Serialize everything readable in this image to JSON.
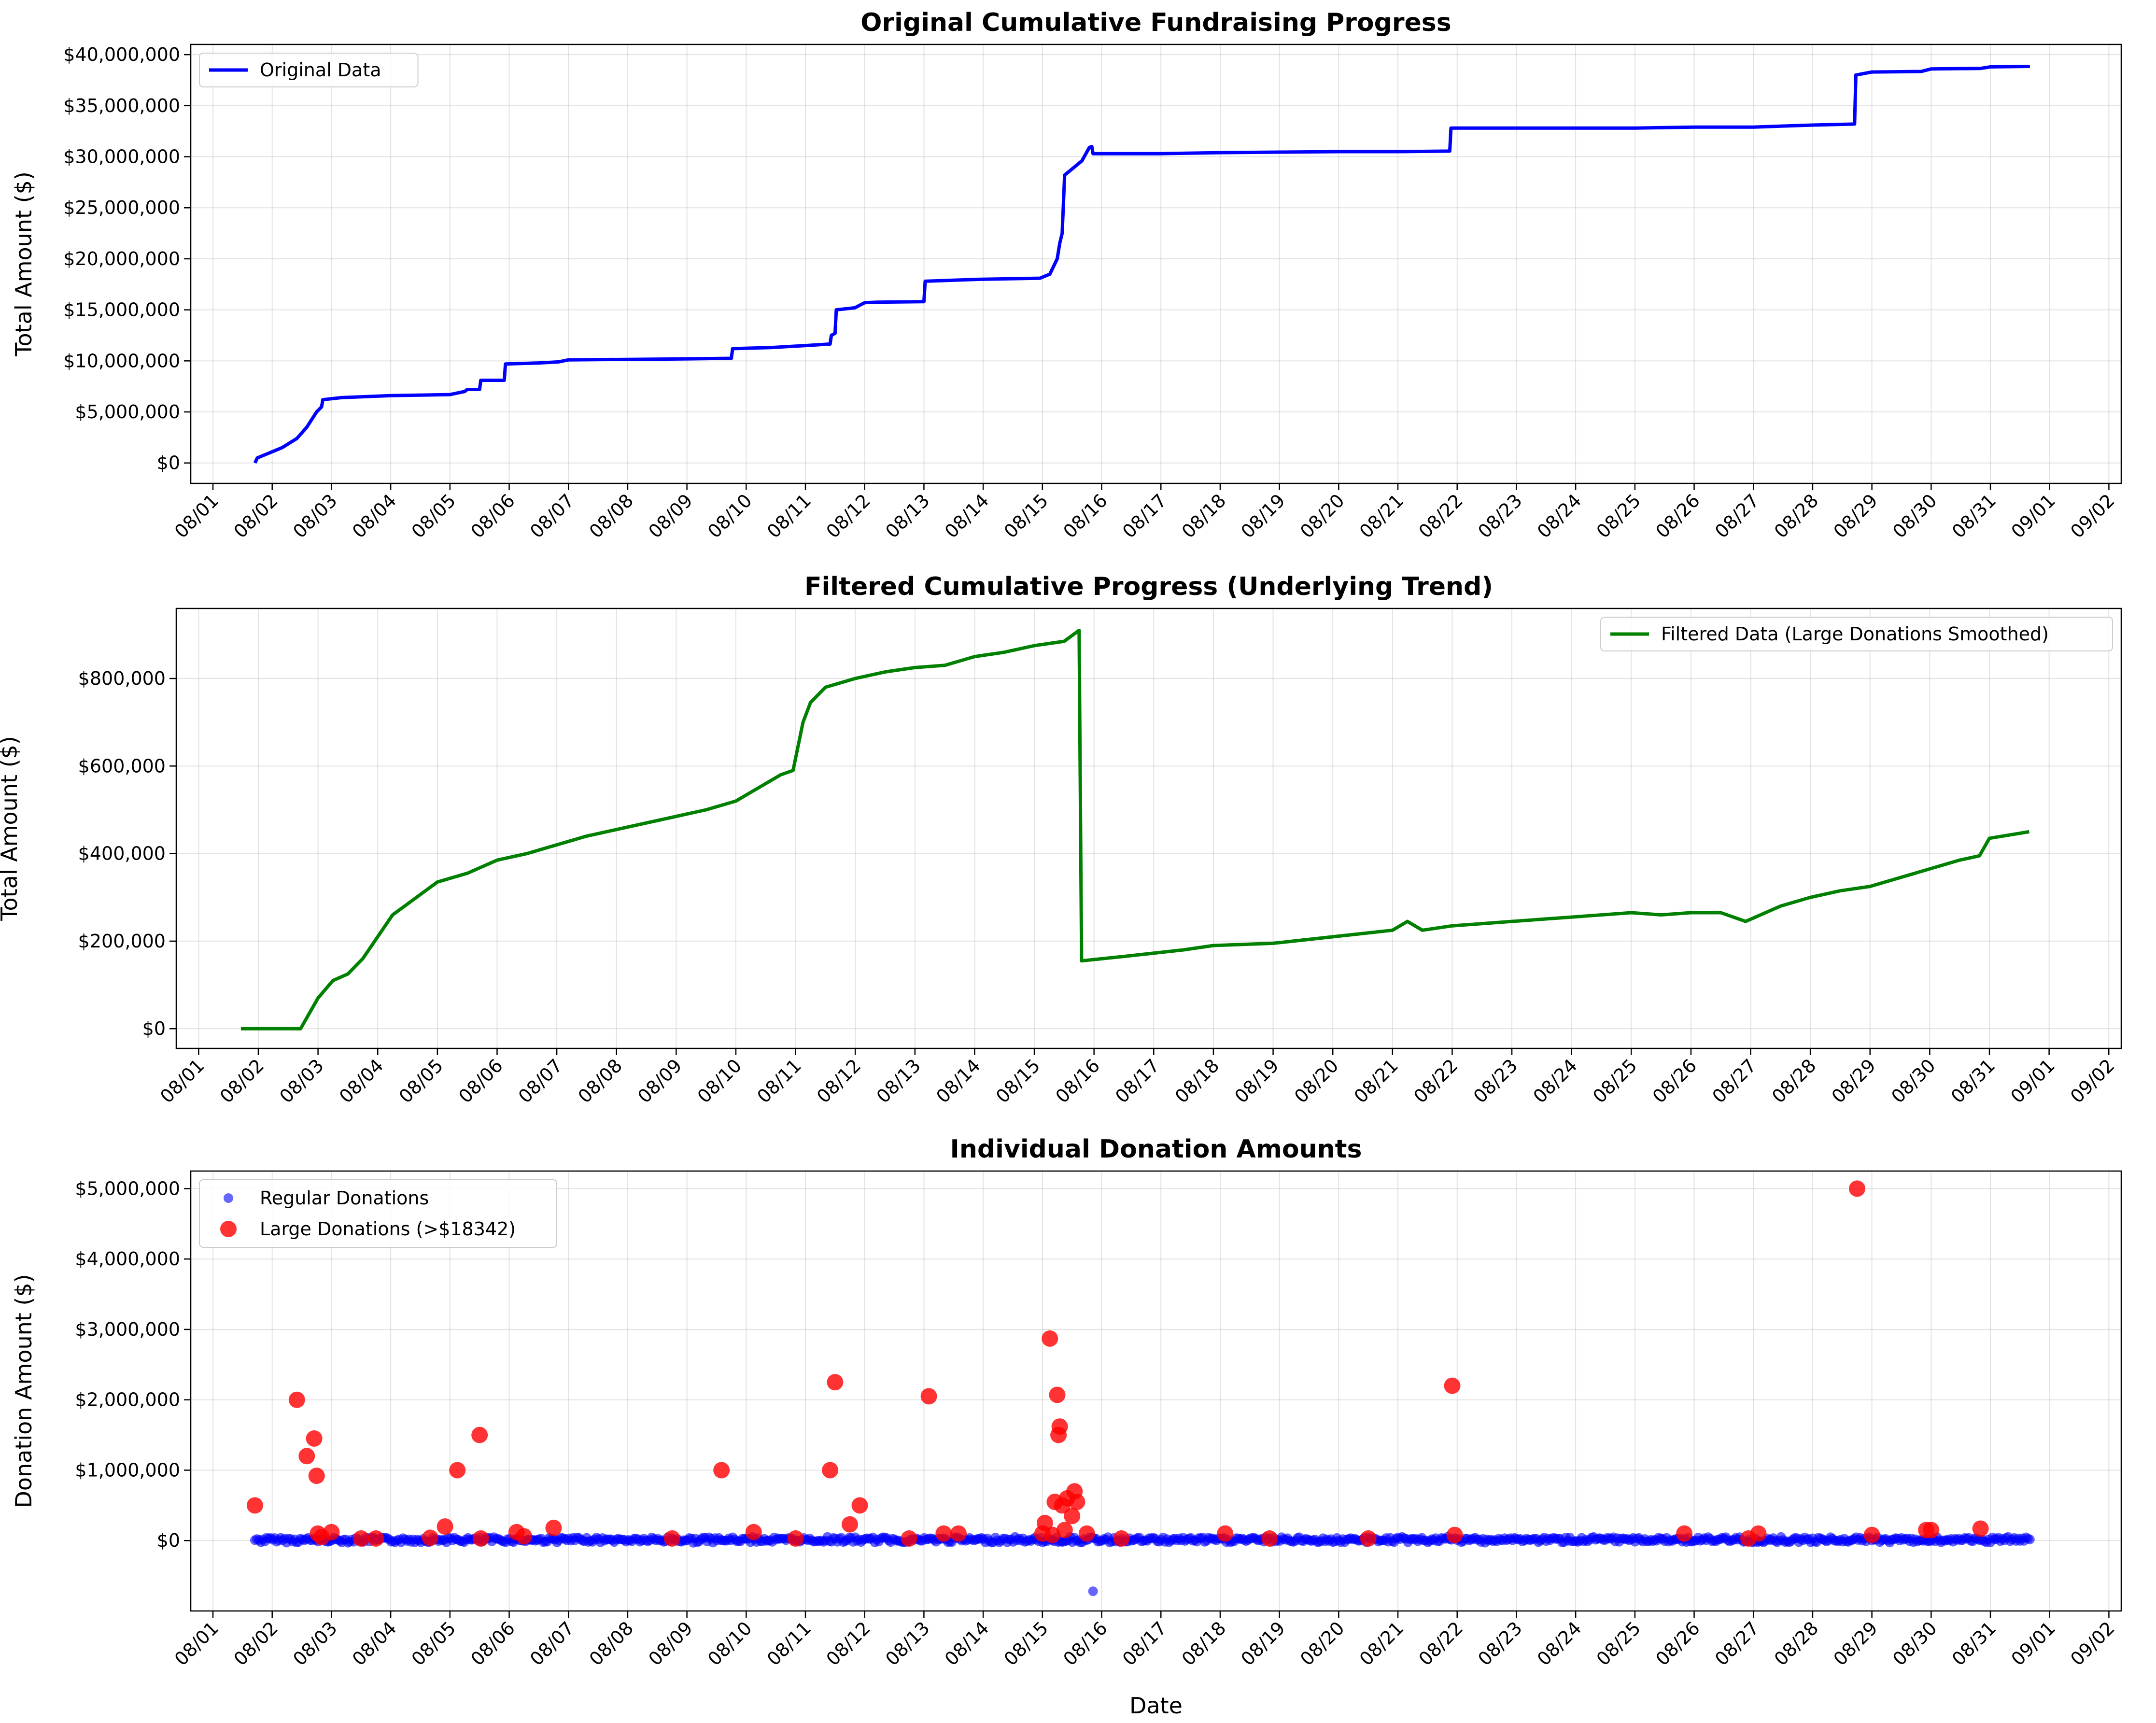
{
  "chart_data": [
    {
      "type": "line",
      "title": "Original Cumulative Fundraising Progress",
      "xlabel": "",
      "ylabel": "Total Amount ($)",
      "x_ticks": [
        "08/01",
        "08/02",
        "08/03",
        "08/04",
        "08/05",
        "08/06",
        "08/07",
        "08/08",
        "08/09",
        "08/10",
        "08/11",
        "08/12",
        "08/13",
        "08/14",
        "08/15",
        "08/16",
        "08/17",
        "08/18",
        "08/19",
        "08/20",
        "08/21",
        "08/22",
        "08/23",
        "08/24",
        "08/25",
        "08/26",
        "08/27",
        "08/28",
        "08/29",
        "08/30",
        "08/31",
        "09/01",
        "09/02"
      ],
      "xlim": [
        "2023-07-31T15:00",
        "2023-09-02T05:00"
      ],
      "ylim": [
        -2000000,
        41000000
      ],
      "y_ticks": [
        0,
        5000000,
        10000000,
        15000000,
        20000000,
        25000000,
        30000000,
        35000000,
        40000000
      ],
      "y_tick_labels": [
        "$0",
        "$5,000,000",
        "$10,000,000",
        "$15,000,000",
        "$20,000,000",
        "$25,000,000",
        "$30,000,000",
        "$35,000,000",
        "$40,000,000"
      ],
      "grid": true,
      "legend": "upper left",
      "series": [
        {
          "name": "Original Data",
          "color": "#0000ff",
          "x": [
            "2023-08-01T17:00",
            "2023-08-01T18:00",
            "2023-08-02T04:00",
            "2023-08-02T10:00",
            "2023-08-02T14:00",
            "2023-08-02T18:00",
            "2023-08-02T20:00",
            "2023-08-02T20:30",
            "2023-08-03T04:00",
            "2023-08-04T00:00",
            "2023-08-05T00:00",
            "2023-08-05T06:00",
            "2023-08-05T07:00",
            "2023-08-05T12:00",
            "2023-08-05T12:30",
            "2023-08-05T22:00",
            "2023-08-05T22:30",
            "2023-08-06T12:00",
            "2023-08-06T20:00",
            "2023-08-07T00:00",
            "2023-08-08T00:00",
            "2023-08-09T00:00",
            "2023-08-09T18:00",
            "2023-08-09T18:30",
            "2023-08-10T10:00",
            "2023-08-11T00:00",
            "2023-08-11T10:00",
            "2023-08-11T10:30",
            "2023-08-11T12:00",
            "2023-08-11T12:30",
            "2023-08-11T20:00",
            "2023-08-12T00:00",
            "2023-08-12T05:00",
            "2023-08-13T00:00",
            "2023-08-13T00:30",
            "2023-08-13T12:00",
            "2023-08-14T00:00",
            "2023-08-14T23:00",
            "2023-08-15T03:00",
            "2023-08-15T06:00",
            "2023-08-15T07:00",
            "2023-08-15T08:00",
            "2023-08-15T09:00",
            "2023-08-15T12:00",
            "2023-08-15T16:00",
            "2023-08-15T19:00",
            "2023-08-15T20:00",
            "2023-08-15T20:30",
            "2023-08-16T00:00",
            "2023-08-17T00:00",
            "2023-08-18T00:00",
            "2023-08-19T00:00",
            "2023-08-20T00:00",
            "2023-08-21T00:00",
            "2023-08-21T21:00",
            "2023-08-21T21:30",
            "2023-08-23T00:00",
            "2023-08-25T00:00",
            "2023-08-26T00:00",
            "2023-08-27T00:00",
            "2023-08-28T00:00",
            "2023-08-28T17:00",
            "2023-08-28T17:30",
            "2023-08-29T00:00",
            "2023-08-29T20:00",
            "2023-08-30T00:00",
            "2023-08-30T20:00",
            "2023-08-31T00:00",
            "2023-08-31T16:00"
          ],
          "values": [
            0,
            500000,
            1500000,
            2400000,
            3500000,
            5000000,
            5500000,
            6200000,
            6400000,
            6600000,
            6700000,
            7000000,
            7200000,
            7200000,
            8100000,
            8100000,
            9700000,
            9800000,
            9900000,
            10100000,
            10150000,
            10200000,
            10250000,
            11200000,
            11300000,
            11500000,
            11650000,
            12500000,
            12700000,
            15000000,
            15200000,
            15700000,
            15750000,
            15800000,
            17800000,
            17900000,
            18000000,
            18100000,
            18500000,
            20000000,
            21500000,
            22500000,
            28200000,
            28800000,
            29600000,
            30900000,
            31000000,
            30300000,
            30300000,
            30300000,
            30400000,
            30450000,
            30500000,
            30500000,
            30550000,
            32800000,
            32800000,
            32800000,
            32900000,
            32900000,
            33100000,
            33200000,
            38000000,
            38300000,
            38350000,
            38600000,
            38650000,
            38800000,
            38850000
          ]
        }
      ]
    },
    {
      "type": "line",
      "title": "Filtered Cumulative Progress (Underlying Trend)",
      "xlabel": "",
      "ylabel": "Total Amount ($)",
      "x_ticks": [
        "08/01",
        "08/02",
        "08/03",
        "08/04",
        "08/05",
        "08/06",
        "08/07",
        "08/08",
        "08/09",
        "08/10",
        "08/11",
        "08/12",
        "08/13",
        "08/14",
        "08/15",
        "08/16",
        "08/17",
        "08/18",
        "08/19",
        "08/20",
        "08/21",
        "08/22",
        "08/23",
        "08/24",
        "08/25",
        "08/26",
        "08/27",
        "08/28",
        "08/29",
        "08/30",
        "08/31",
        "09/01",
        "09/02"
      ],
      "xlim": [
        "2023-07-31T15:00",
        "2023-09-02T05:00"
      ],
      "ylim": [
        -45000,
        960000
      ],
      "y_ticks": [
        0,
        200000,
        400000,
        600000,
        800000
      ],
      "y_tick_labels": [
        "$0",
        "$200,000",
        "$400,000",
        "$600,000",
        "$800,000"
      ],
      "grid": true,
      "legend": "upper right",
      "series": [
        {
          "name": "Filtered Data (Large Donations Smoothed)",
          "color": "#008000",
          "x": [
            "2023-08-01T17:00",
            "2023-08-02T12:00",
            "2023-08-02T17:00",
            "2023-08-03T00:00",
            "2023-08-03T06:00",
            "2023-08-03T12:00",
            "2023-08-03T18:00",
            "2023-08-04T00:00",
            "2023-08-04T06:00",
            "2023-08-04T12:00",
            "2023-08-04T18:00",
            "2023-08-05T00:00",
            "2023-08-05T12:00",
            "2023-08-06T00:00",
            "2023-08-06T12:00",
            "2023-08-07T00:00",
            "2023-08-07T12:00",
            "2023-08-08T00:00",
            "2023-08-08T12:00",
            "2023-08-09T00:00",
            "2023-08-09T12:00",
            "2023-08-10T00:00",
            "2023-08-10T12:00",
            "2023-08-10T18:00",
            "2023-08-10T23:00",
            "2023-08-11T03:00",
            "2023-08-11T06:00",
            "2023-08-11T12:00",
            "2023-08-12T00:00",
            "2023-08-12T12:00",
            "2023-08-13T00:00",
            "2023-08-13T12:00",
            "2023-08-14T00:00",
            "2023-08-14T12:00",
            "2023-08-15T00:00",
            "2023-08-15T12:00",
            "2023-08-15T18:00",
            "2023-08-15T19:00",
            "2023-08-16T12:00",
            "2023-08-17T12:00",
            "2023-08-18T00:00",
            "2023-08-19T00:00",
            "2023-08-20T00:00",
            "2023-08-21T00:00",
            "2023-08-21T06:00",
            "2023-08-21T12:00",
            "2023-08-22T00:00",
            "2023-08-23T00:00",
            "2023-08-24T00:00",
            "2023-08-25T00:00",
            "2023-08-25T12:00",
            "2023-08-26T00:00",
            "2023-08-26T12:00",
            "2023-08-26T22:00",
            "2023-08-27T12:00",
            "2023-08-28T00:00",
            "2023-08-28T12:00",
            "2023-08-29T00:00",
            "2023-08-29T12:00",
            "2023-08-30T00:00",
            "2023-08-30T12:00",
            "2023-08-30T20:00",
            "2023-08-31T00:00",
            "2023-08-31T16:00"
          ],
          "values": [
            0,
            0,
            0,
            70000,
            110000,
            125000,
            160000,
            210000,
            260000,
            285000,
            310000,
            335000,
            355000,
            385000,
            400000,
            420000,
            440000,
            455000,
            470000,
            485000,
            500000,
            520000,
            560000,
            580000,
            590000,
            700000,
            745000,
            780000,
            800000,
            815000,
            825000,
            830000,
            850000,
            860000,
            875000,
            885000,
            910000,
            155000,
            165000,
            180000,
            190000,
            195000,
            210000,
            225000,
            245000,
            225000,
            235000,
            245000,
            255000,
            265000,
            260000,
            265000,
            265000,
            245000,
            280000,
            300000,
            315000,
            325000,
            345000,
            365000,
            385000,
            395000,
            435000,
            450000
          ]
        }
      ]
    },
    {
      "type": "scatter",
      "title": "Individual Donation Amounts",
      "xlabel": "Date",
      "ylabel": "Donation Amount ($)",
      "x_ticks": [
        "08/01",
        "08/02",
        "08/03",
        "08/04",
        "08/05",
        "08/06",
        "08/07",
        "08/08",
        "08/09",
        "08/10",
        "08/11",
        "08/12",
        "08/13",
        "08/14",
        "08/15",
        "08/16",
        "08/17",
        "08/18",
        "08/19",
        "08/20",
        "08/21",
        "08/22",
        "08/23",
        "08/24",
        "08/25",
        "08/26",
        "08/27",
        "08/28",
        "08/29",
        "08/30",
        "08/31",
        "09/01",
        "09/02"
      ],
      "xlim": [
        "2023-07-31T15:00",
        "2023-09-02T05:00"
      ],
      "ylim": [
        -1000000,
        5250000
      ],
      "y_ticks": [
        0,
        1000000,
        2000000,
        3000000,
        4000000,
        5000000
      ],
      "y_tick_labels": [
        "$0",
        "$1,000,000",
        "$2,000,000",
        "$3,000,000",
        "$4,000,000",
        "$5,000,000"
      ],
      "grid": true,
      "legend": "upper left",
      "series": [
        {
          "name": "Regular Donations",
          "color": "#0000ff",
          "x_range": [
            "2023-08-01T17:00",
            "2023-08-31T16:00"
          ],
          "outlier": {
            "x": "2023-08-15T20:30",
            "value": -720000
          },
          "typical_value": 10000
        },
        {
          "name": "Large Donations (>$18342)",
          "color": "#ff0000",
          "points": [
            [
              "2023-08-01T17:00",
              500000
            ],
            [
              "2023-08-02T10:00",
              2000000
            ],
            [
              "2023-08-02T14:00",
              1200000
            ],
            [
              "2023-08-02T17:00",
              1450000
            ],
            [
              "2023-08-02T18:00",
              920000
            ],
            [
              "2023-08-02T18:30",
              100000
            ],
            [
              "2023-08-02T20:00",
              50000
            ],
            [
              "2023-08-03T00:00",
              120000
            ],
            [
              "2023-08-03T12:00",
              30000
            ],
            [
              "2023-08-03T18:00",
              30000
            ],
            [
              "2023-08-04T16:00",
              40000
            ],
            [
              "2023-08-04T22:00",
              200000
            ],
            [
              "2023-08-05T03:00",
              1000000
            ],
            [
              "2023-08-05T12:00",
              1500000
            ],
            [
              "2023-08-05T12:30",
              30000
            ],
            [
              "2023-08-06T03:00",
              120000
            ],
            [
              "2023-08-06T06:00",
              60000
            ],
            [
              "2023-08-06T18:00",
              180000
            ],
            [
              "2023-08-08T18:00",
              30000
            ],
            [
              "2023-08-09T14:00",
              1000000
            ],
            [
              "2023-08-10T03:00",
              120000
            ],
            [
              "2023-08-10T20:00",
              30000
            ],
            [
              "2023-08-11T10:00",
              1000000
            ],
            [
              "2023-08-11T12:00",
              2250000
            ],
            [
              "2023-08-11T18:00",
              230000
            ],
            [
              "2023-08-11T22:00",
              500000
            ],
            [
              "2023-08-12T18:00",
              30000
            ],
            [
              "2023-08-13T02:00",
              2050000
            ],
            [
              "2023-08-13T08:00",
              100000
            ],
            [
              "2023-08-13T14:00",
              100000
            ],
            [
              "2023-08-15T00:00",
              100000
            ],
            [
              "2023-08-15T01:00",
              250000
            ],
            [
              "2023-08-15T03:00",
              2870000
            ],
            [
              "2023-08-15T05:00",
              550000
            ],
            [
              "2023-08-15T06:00",
              2070000
            ],
            [
              "2023-08-15T06:30",
              1500000
            ],
            [
              "2023-08-15T07:00",
              1620000
            ],
            [
              "2023-08-15T08:00",
              500000
            ],
            [
              "2023-08-15T10:00",
              600000
            ],
            [
              "2023-08-15T12:00",
              350000
            ],
            [
              "2023-08-15T13:00",
              700000
            ],
            [
              "2023-08-15T14:00",
              550000
            ],
            [
              "2023-08-15T18:00",
              100000
            ],
            [
              "2023-08-15T09:00",
              150000
            ],
            [
              "2023-08-15T04:00",
              80000
            ],
            [
              "2023-08-16T08:00",
              30000
            ],
            [
              "2023-08-18T02:00",
              100000
            ],
            [
              "2023-08-18T20:00",
              30000
            ],
            [
              "2023-08-20T12:00",
              30000
            ],
            [
              "2023-08-21T22:00",
              2200000
            ],
            [
              "2023-08-21T23:00",
              80000
            ],
            [
              "2023-08-25T20:00",
              100000
            ],
            [
              "2023-08-26T22:00",
              30000
            ],
            [
              "2023-08-27T02:00",
              100000
            ],
            [
              "2023-08-28T18:00",
              5000000
            ],
            [
              "2023-08-29T00:00",
              80000
            ],
            [
              "2023-08-29T22:00",
              150000
            ],
            [
              "2023-08-30T00:00",
              150000
            ],
            [
              "2023-08-30T20:00",
              170000
            ]
          ]
        }
      ]
    }
  ]
}
